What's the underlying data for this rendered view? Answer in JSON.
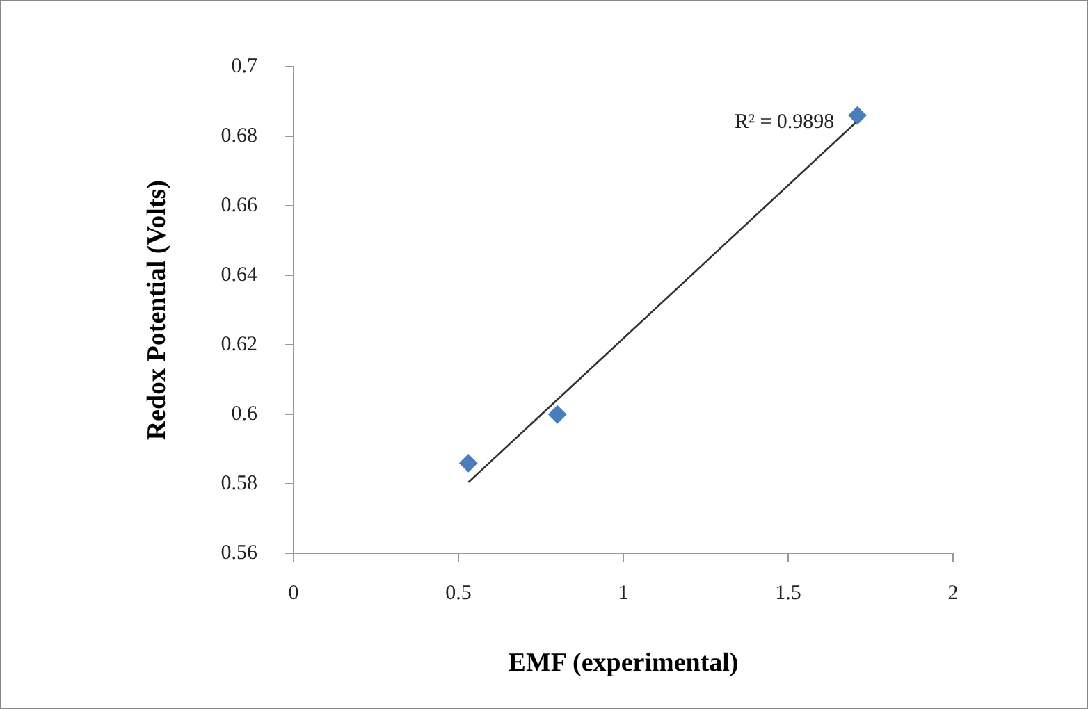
{
  "chart_data": {
    "type": "scatter",
    "xlabel": "EMF (experimental)",
    "ylabel": "Redox Potential (Volts)",
    "series": [
      {
        "color": "#4a7ebb",
        "marker": "diamond",
        "x": [
          0.53,
          0.8,
          1.71
        ],
        "values": [
          0.586,
          0.6,
          0.686
        ]
      },
      {
        "type": "line",
        "color": "#303030",
        "marker": "none",
        "line_style": "solid",
        "x": [
          0.53,
          1.71
        ],
        "values": [
          0.5805,
          0.6844
        ]
      }
    ],
    "xlim": [
      0,
      2
    ],
    "xticks": [
      0,
      0.5,
      1,
      1.5,
      2
    ],
    "ylim": [
      0.56,
      0.7
    ],
    "yticks": [
      0.56,
      0.58,
      0.6,
      0.62,
      0.64,
      0.66,
      0.68,
      0.7
    ],
    "annotations": [
      "R² = 0.9898"
    ],
    "grid": false,
    "legend": false
  }
}
